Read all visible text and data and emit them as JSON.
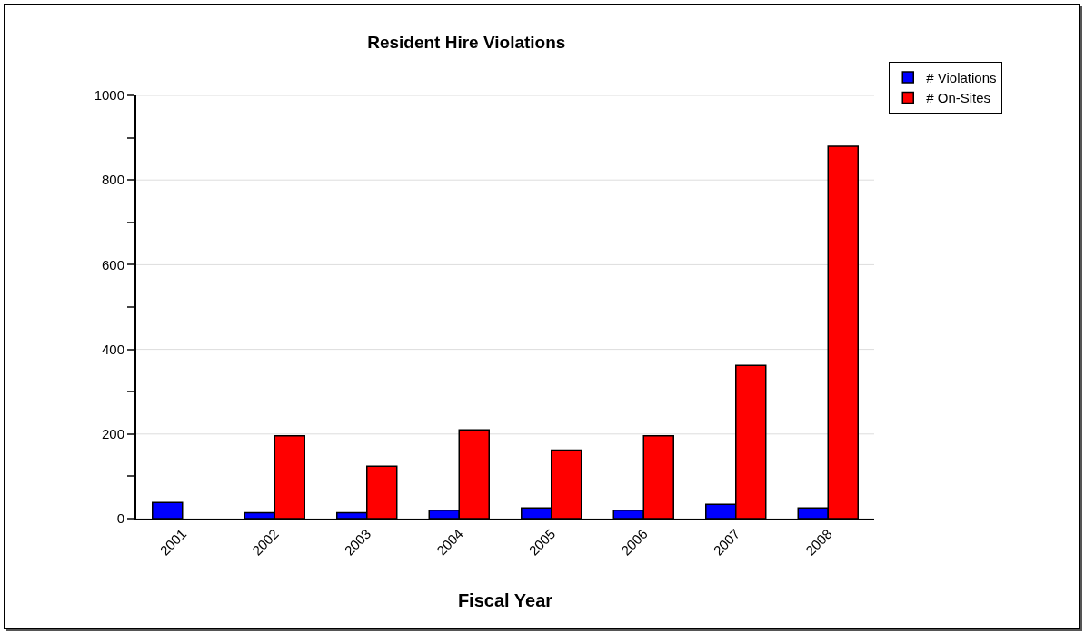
{
  "chart_data": {
    "type": "bar",
    "title": "Resident Hire Violations",
    "xlabel": "Fiscal Year",
    "categories": [
      "2001",
      "2002",
      "2003",
      "2004",
      "2005",
      "2006",
      "2007",
      "2008"
    ],
    "series": [
      {
        "name": "# Violations",
        "color": "#0000ff",
        "values": [
          38,
          14,
          14,
          20,
          25,
          20,
          34,
          25
        ]
      },
      {
        "name": "# On-Sites",
        "color": "#ff0000",
        "values": [
          null,
          196,
          124,
          210,
          162,
          196,
          362,
          880
        ]
      }
    ],
    "ylim": [
      0,
      1000
    ],
    "yticks": [
      0,
      {
        "value": 100,
        "label": null
      },
      200,
      {
        "value": 300,
        "label": null
      },
      400,
      {
        "value": 500,
        "label": null
      },
      600,
      {
        "value": 700,
        "label": null
      },
      800,
      {
        "value": 900,
        "label": null
      },
      1000
    ],
    "grid": "y",
    "legend": "top right"
  }
}
